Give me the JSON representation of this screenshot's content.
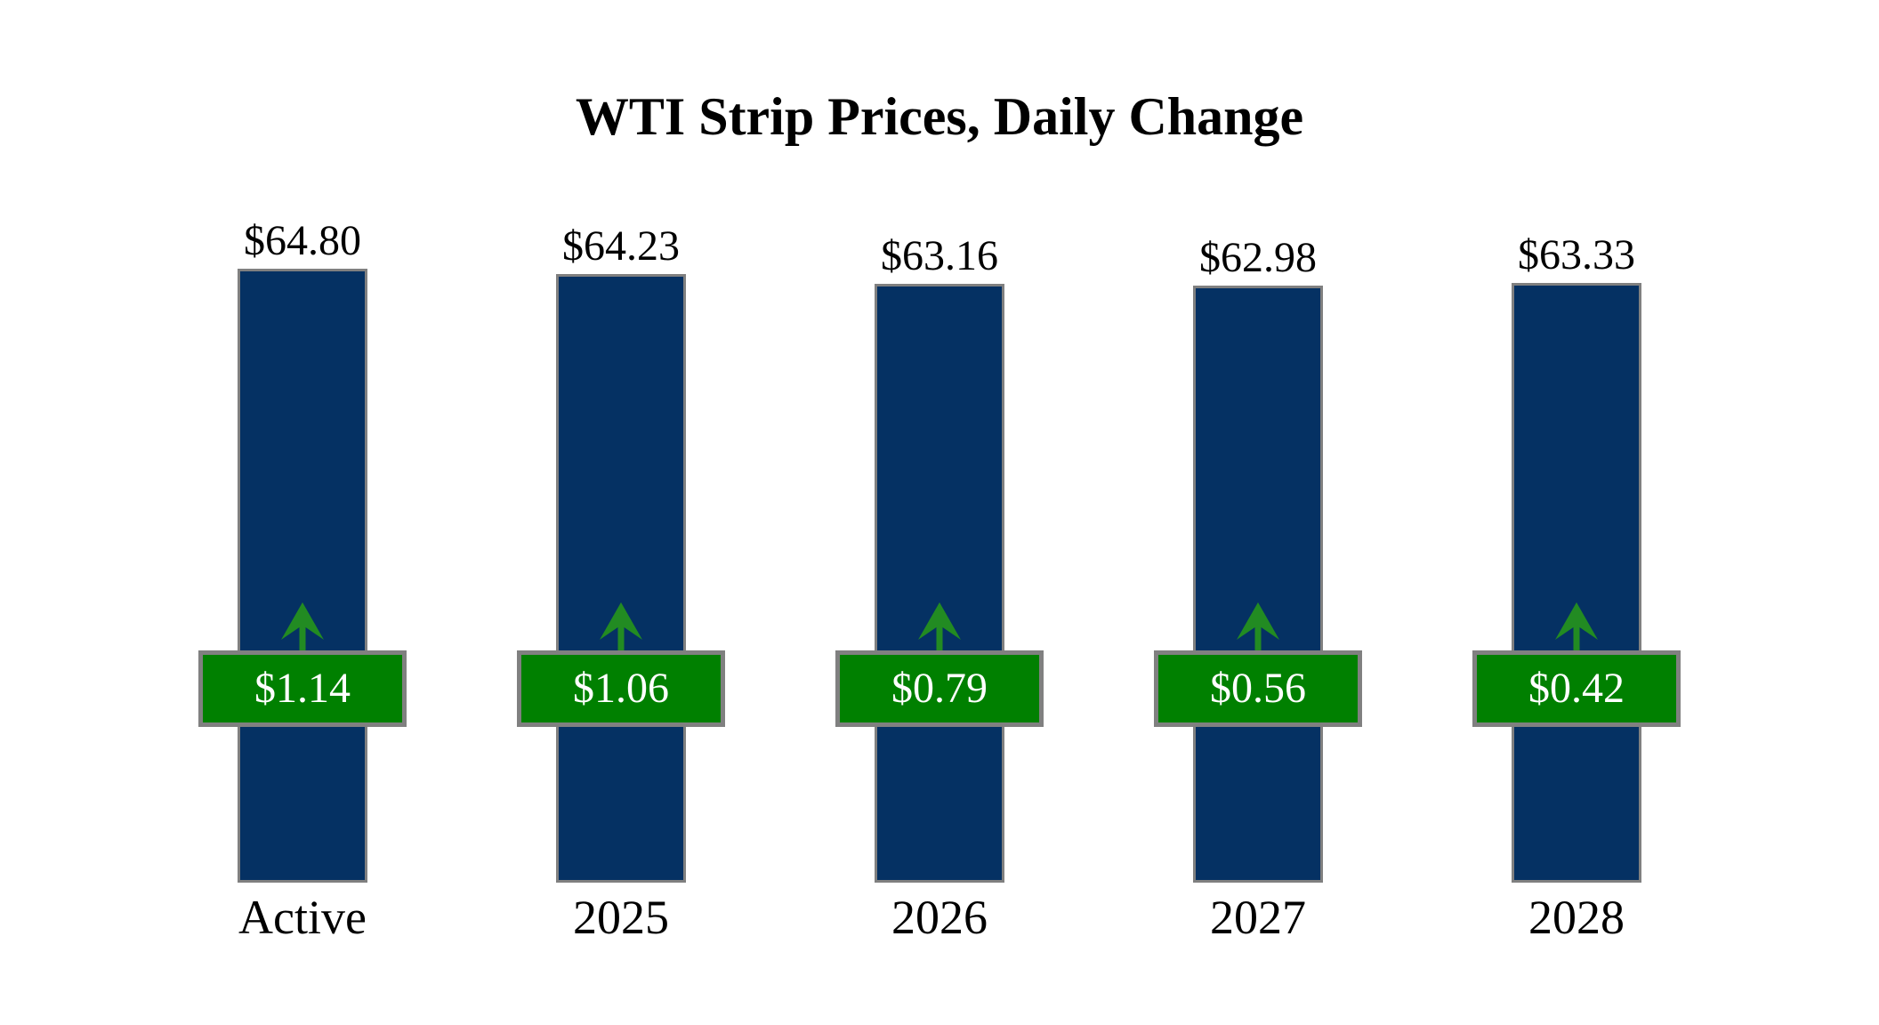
{
  "chart_data": {
    "type": "bar",
    "title": "WTI Strip Prices, Daily Change",
    "categories": [
      "Active",
      "2025",
      "2026",
      "2027",
      "2028"
    ],
    "values": [
      64.8,
      64.23,
      63.16,
      62.98,
      63.33
    ],
    "changes": [
      1.14,
      1.06,
      0.79,
      0.56,
      0.42
    ],
    "bars": [
      {
        "category": "Active",
        "price": 64.8,
        "price_label": "$64.80",
        "change": 1.14,
        "change_label": "$1.14",
        "direction": "up"
      },
      {
        "category": "2025",
        "price": 64.23,
        "price_label": "$64.23",
        "change": 1.06,
        "change_label": "$1.06",
        "direction": "up"
      },
      {
        "category": "2026",
        "price": 63.16,
        "price_label": "$63.16",
        "change": 0.79,
        "change_label": "$0.79",
        "direction": "up"
      },
      {
        "category": "2027",
        "price": 62.98,
        "price_label": "$62.98",
        "change": 0.56,
        "change_label": "$0.56",
        "direction": "up"
      },
      {
        "category": "2028",
        "price": 63.33,
        "price_label": "$63.33",
        "change": 0.42,
        "change_label": "$0.42",
        "direction": "up"
      }
    ],
    "value_axis": {
      "min": 0,
      "shown": false
    },
    "grid": false,
    "legend": false,
    "colors": {
      "bar_fill": "#053163",
      "bar_border": "#808080",
      "badge_fill": "#008000",
      "badge_border": "#808080",
      "badge_text": "#ffffff",
      "arrow": "#228B22",
      "label_text": "#000000"
    }
  }
}
